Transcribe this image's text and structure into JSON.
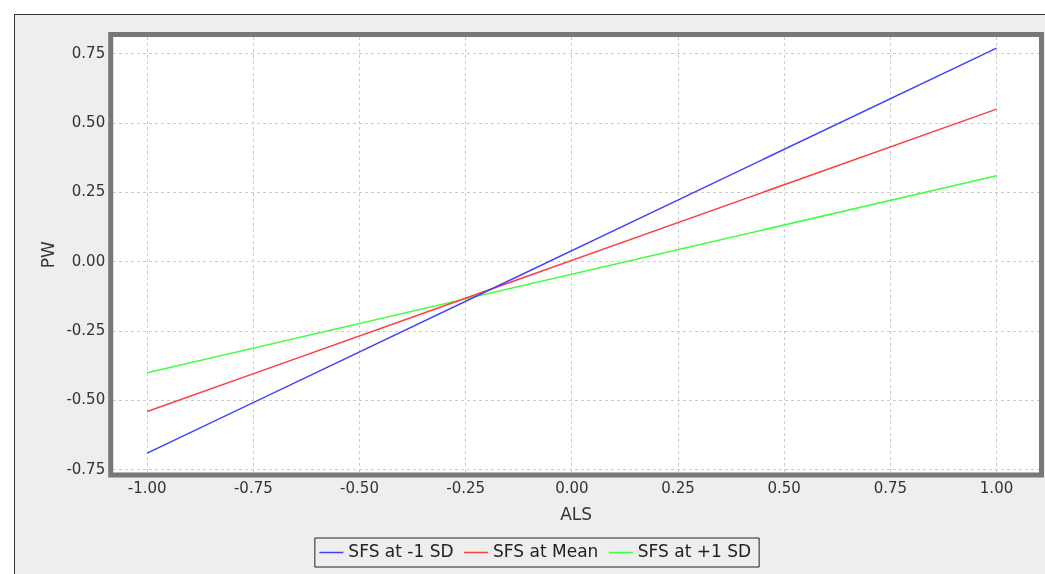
{
  "chart_data": {
    "type": "line",
    "xlabel": "ALS",
    "ylabel": "PW",
    "x": [
      -1,
      1
    ],
    "series": [
      {
        "name": "SFS at -1 SD",
        "color": "#4040ff",
        "values": [
          -0.69,
          0.77
        ]
      },
      {
        "name": "SFS at Mean",
        "color": "#ff4040",
        "values": [
          -0.54,
          0.55
        ]
      },
      {
        "name": "SFS at +1 SD",
        "color": "#40ff40",
        "values": [
          -0.4,
          0.31
        ]
      }
    ],
    "xlim": [
      -1.08,
      1.1
    ],
    "xticks": [
      {
        "value": -1,
        "label": "-1.00"
      },
      {
        "value": -0.75,
        "label": "-0.75"
      },
      {
        "value": -0.5,
        "label": "-0.50"
      },
      {
        "value": -0.25,
        "label": "-0.25"
      },
      {
        "value": 0,
        "label": "0.00"
      },
      {
        "value": 0.25,
        "label": "0.25"
      },
      {
        "value": 0.5,
        "label": "0.50"
      },
      {
        "value": 0.75,
        "label": "0.75"
      },
      {
        "value": 1,
        "label": "1.00"
      }
    ],
    "ylim": [
      -0.76,
      0.81
    ],
    "yticks": [
      {
        "value": -0.75,
        "label": "-0.75"
      },
      {
        "value": -0.5,
        "label": "-0.50"
      },
      {
        "value": -0.25,
        "label": "-0.25"
      },
      {
        "value": 0,
        "label": "0.00"
      },
      {
        "value": 0.25,
        "label": "0.25"
      },
      {
        "value": 0.5,
        "label": "0.50"
      },
      {
        "value": 0.75,
        "label": "0.75"
      }
    ],
    "grid": true,
    "legend": "bottom",
    "marker": "none",
    "line_style": "solid"
  }
}
